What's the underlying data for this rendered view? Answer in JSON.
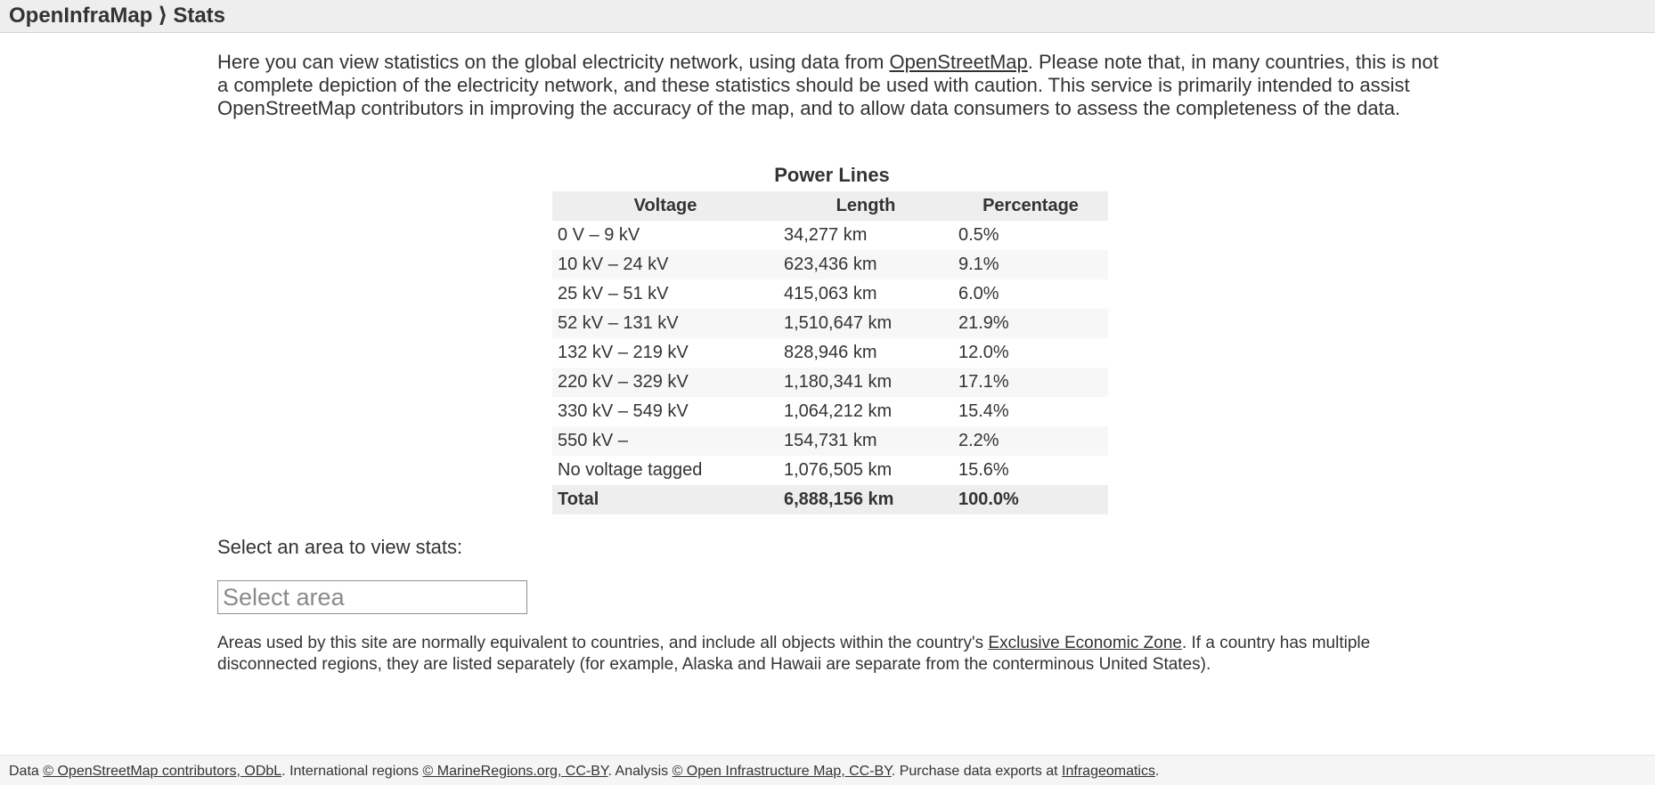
{
  "header": {
    "site_name": "OpenInfraMap",
    "separator": "⟩",
    "page_name": "Stats"
  },
  "intro": {
    "text_before_link": "Here you can view statistics on the global electricity network, using data from ",
    "osm_link": "OpenStreetMap",
    "text_after_link": ". Please note that, in many countries, this is not a complete depiction of the electricity network, and these statistics should be used with caution. This service is primarily intended to assist OpenStreetMap contributors in improving the accuracy of the map, and to allow data consumers to assess the completeness of the data."
  },
  "table": {
    "title": "Power Lines",
    "columns": [
      "Voltage",
      "Length",
      "Percentage"
    ],
    "rows": [
      {
        "voltage": "0 V – 9 kV",
        "length": "34,277 km",
        "percentage": "0.5%"
      },
      {
        "voltage": "10 kV – 24 kV",
        "length": "623,436 km",
        "percentage": "9.1%"
      },
      {
        "voltage": "25 kV – 51 kV",
        "length": "415,063 km",
        "percentage": "6.0%"
      },
      {
        "voltage": "52 kV – 131 kV",
        "length": "1,510,647 km",
        "percentage": "21.9%"
      },
      {
        "voltage": "132 kV – 219 kV",
        "length": "828,946 km",
        "percentage": "12.0%"
      },
      {
        "voltage": "220 kV – 329 kV",
        "length": "1,180,341 km",
        "percentage": "17.1%"
      },
      {
        "voltage": "330 kV – 549 kV",
        "length": "1,064,212 km",
        "percentage": "15.4%"
      },
      {
        "voltage": "550 kV –",
        "length": "154,731 km",
        "percentage": "2.2%"
      },
      {
        "voltage": "No voltage tagged",
        "length": "1,076,505 km",
        "percentage": "15.6%"
      }
    ],
    "total": {
      "voltage": "Total",
      "length": "6,888,156 km",
      "percentage": "100.0%"
    }
  },
  "area_select": {
    "label": "Select an area to view stats:",
    "placeholder": "Select area",
    "value": ""
  },
  "areas_note": {
    "text_before_link": "Areas used by this site are normally equivalent to countries, and include all objects within the country's ",
    "eez_link": "Exclusive Economic Zone",
    "text_after_link": ". If a country has multiple disconnected regions, they are listed separately (for example, Alaska and Hawaii are separate from the conterminous United States)."
  },
  "footer": {
    "data_prefix": "Data ",
    "osm_link": "© OpenStreetMap contributors, ODbL",
    "regions_prefix": ". International regions ",
    "marine_link": "© MarineRegions.org, CC-BY",
    "analysis_prefix": ". Analysis ",
    "oim_link": "© Open Infrastructure Map, CC-BY",
    "purchase_prefix": ". Purchase data exports at ",
    "infrageo_link": "Infrageomatics",
    "end": "."
  }
}
